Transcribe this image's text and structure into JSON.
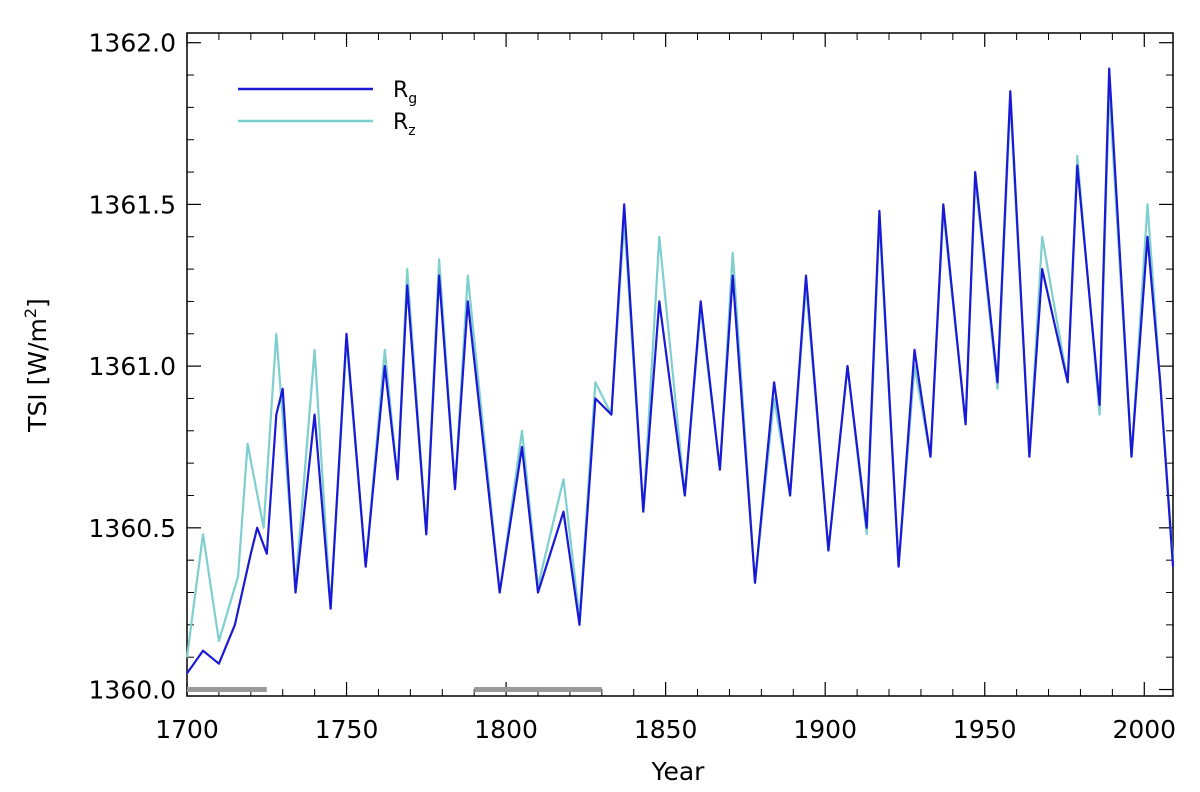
{
  "chart_data": {
    "type": "line",
    "title": "",
    "xlabel": "Year",
    "ylabel": {
      "main": "TSI [W/m",
      "sup": "2",
      "close": "]"
    },
    "xlim": [
      1700,
      2009
    ],
    "ylim": [
      1359.98,
      1362.03
    ],
    "xticks": [
      1700,
      1750,
      1800,
      1850,
      1900,
      1950,
      2000
    ],
    "xtick_labels": [
      "1700",
      "1750",
      "1800",
      "1850",
      "1900",
      "1950",
      "2000"
    ],
    "yticks": [
      1360.0,
      1360.5,
      1361.0,
      1361.5,
      1362.0
    ],
    "ytick_labels": [
      "1360.0",
      "1360.5",
      "1361.0",
      "1361.5",
      "1362.0"
    ],
    "grid": false,
    "legend_position": "top-left",
    "series": [
      {
        "name": "Rg",
        "label_main": "R",
        "label_sub": "g",
        "color": "#1a1ad6",
        "points": [
          [
            1700,
            1360.05
          ],
          [
            1705,
            1360.12
          ],
          [
            1710,
            1360.08
          ],
          [
            1715,
            1360.2
          ],
          [
            1720,
            1360.42
          ],
          [
            1722,
            1360.5
          ],
          [
            1725,
            1360.42
          ],
          [
            1728,
            1360.85
          ],
          [
            1730,
            1360.93
          ],
          [
            1734,
            1360.3
          ],
          [
            1740,
            1360.85
          ],
          [
            1745,
            1360.25
          ],
          [
            1750,
            1361.1
          ],
          [
            1756,
            1360.38
          ],
          [
            1762,
            1361.0
          ],
          [
            1766,
            1360.65
          ],
          [
            1769,
            1361.25
          ],
          [
            1775,
            1360.48
          ],
          [
            1779,
            1361.28
          ],
          [
            1784,
            1360.62
          ],
          [
            1788,
            1361.2
          ],
          [
            1798,
            1360.3
          ],
          [
            1805,
            1360.75
          ],
          [
            1810,
            1360.3
          ],
          [
            1818,
            1360.55
          ],
          [
            1823,
            1360.2
          ],
          [
            1828,
            1360.9
          ],
          [
            1833,
            1360.85
          ],
          [
            1837,
            1361.5
          ],
          [
            1843,
            1360.55
          ],
          [
            1848,
            1361.2
          ],
          [
            1856,
            1360.6
          ],
          [
            1861,
            1361.2
          ],
          [
            1867,
            1360.68
          ],
          [
            1871,
            1361.28
          ],
          [
            1878,
            1360.33
          ],
          [
            1884,
            1360.95
          ],
          [
            1889,
            1360.6
          ],
          [
            1894,
            1361.28
          ],
          [
            1901,
            1360.43
          ],
          [
            1907,
            1361.0
          ],
          [
            1913,
            1360.5
          ],
          [
            1917,
            1361.48
          ],
          [
            1923,
            1360.38
          ],
          [
            1928,
            1361.05
          ],
          [
            1933,
            1360.72
          ],
          [
            1937,
            1361.5
          ],
          [
            1944,
            1360.82
          ],
          [
            1947,
            1361.6
          ],
          [
            1954,
            1360.95
          ],
          [
            1958,
            1361.85
          ],
          [
            1964,
            1360.72
          ],
          [
            1968,
            1361.3
          ],
          [
            1976,
            1360.95
          ],
          [
            1979,
            1361.62
          ],
          [
            1986,
            1360.88
          ],
          [
            1989,
            1361.92
          ],
          [
            1996,
            1360.72
          ],
          [
            2001,
            1361.4
          ],
          [
            2005,
            1360.95
          ],
          [
            2009,
            1360.38
          ]
        ]
      },
      {
        "name": "Rz",
        "label_main": "R",
        "label_sub": "z",
        "color": "#7fcfcf",
        "points": [
          [
            1700,
            1360.1
          ],
          [
            1705,
            1360.48
          ],
          [
            1710,
            1360.15
          ],
          [
            1716,
            1360.35
          ],
          [
            1719,
            1360.76
          ],
          [
            1724,
            1360.5
          ],
          [
            1728,
            1361.1
          ],
          [
            1734,
            1360.32
          ],
          [
            1740,
            1361.05
          ],
          [
            1745,
            1360.25
          ],
          [
            1750,
            1361.08
          ],
          [
            1756,
            1360.38
          ],
          [
            1762,
            1361.05
          ],
          [
            1766,
            1360.65
          ],
          [
            1769,
            1361.3
          ],
          [
            1775,
            1360.48
          ],
          [
            1779,
            1361.33
          ],
          [
            1784,
            1360.62
          ],
          [
            1788,
            1361.28
          ],
          [
            1798,
            1360.3
          ],
          [
            1805,
            1360.8
          ],
          [
            1810,
            1360.32
          ],
          [
            1818,
            1360.65
          ],
          [
            1823,
            1360.22
          ],
          [
            1828,
            1360.95
          ],
          [
            1833,
            1360.85
          ],
          [
            1837,
            1361.45
          ],
          [
            1843,
            1360.55
          ],
          [
            1848,
            1361.4
          ],
          [
            1856,
            1360.6
          ],
          [
            1861,
            1361.18
          ],
          [
            1867,
            1360.68
          ],
          [
            1871,
            1361.35
          ],
          [
            1878,
            1360.33
          ],
          [
            1884,
            1360.9
          ],
          [
            1889,
            1360.6
          ],
          [
            1894,
            1361.25
          ],
          [
            1901,
            1360.43
          ],
          [
            1907,
            1361.0
          ],
          [
            1913,
            1360.48
          ],
          [
            1917,
            1361.45
          ],
          [
            1923,
            1360.38
          ],
          [
            1928,
            1361.0
          ],
          [
            1933,
            1360.72
          ],
          [
            1937,
            1361.48
          ],
          [
            1944,
            1360.82
          ],
          [
            1947,
            1361.58
          ],
          [
            1954,
            1360.93
          ],
          [
            1958,
            1361.82
          ],
          [
            1964,
            1360.72
          ],
          [
            1968,
            1361.4
          ],
          [
            1976,
            1360.95
          ],
          [
            1979,
            1361.65
          ],
          [
            1986,
            1360.85
          ],
          [
            1989,
            1361.85
          ],
          [
            1996,
            1360.72
          ],
          [
            2001,
            1361.5
          ],
          [
            2005,
            1360.95
          ],
          [
            2009,
            1360.4
          ]
        ]
      }
    ],
    "grey_bars": [
      {
        "x_start": 1700,
        "x_end": 1725,
        "y": 1360.0,
        "color": "#999999"
      },
      {
        "x_start": 1790,
        "x_end": 1830,
        "y": 1360.0,
        "color": "#999999"
      }
    ]
  }
}
